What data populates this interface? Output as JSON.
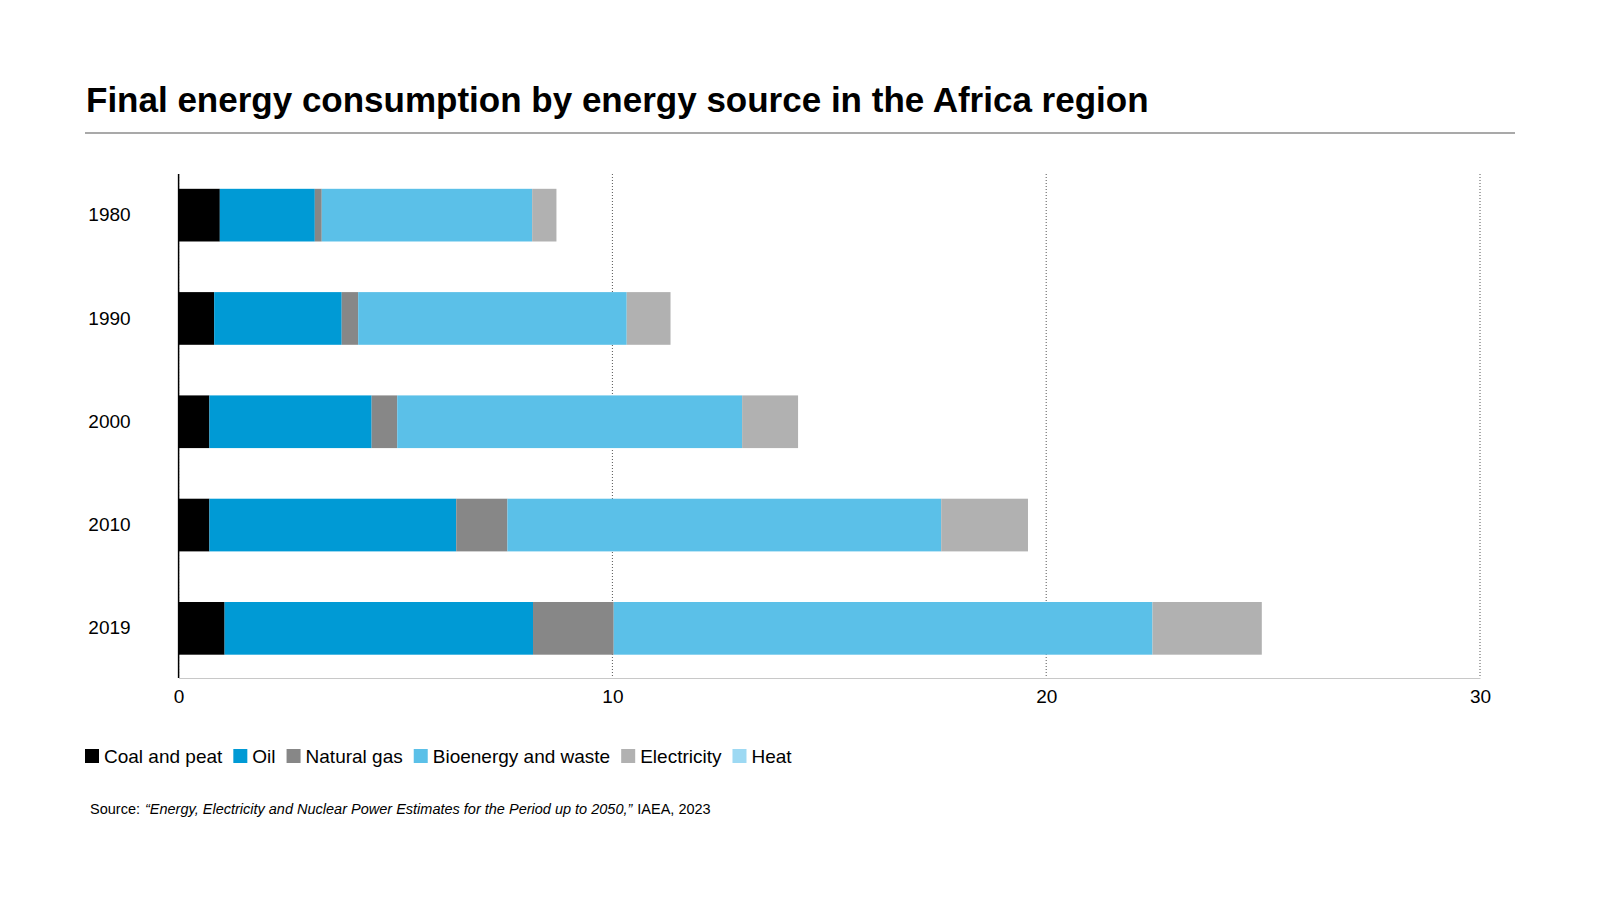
{
  "chart_data": {
    "type": "bar",
    "orientation": "horizontal",
    "stacked": true,
    "title": "Final energy consumption by energy source in the Africa region",
    "source": {
      "label": "Source:",
      "title": "“Energy, Electricity and Nuclear Power Estimates for the Period up to 2050,”",
      "publisher": "IAEA, 2023"
    },
    "categories": [
      "1980",
      "1990",
      "2000",
      "2010",
      "2019"
    ],
    "series": [
      {
        "name": "Coal and peat",
        "color": "#000000",
        "values": [
          0.95,
          0.82,
          0.71,
          0.71,
          1.06
        ]
      },
      {
        "name": "Oil",
        "color": "#009ad5",
        "values": [
          2.19,
          2.94,
          3.74,
          5.69,
          7.11
        ]
      },
      {
        "name": "Natural gas",
        "color": "#878787",
        "values": [
          0.16,
          0.38,
          0.59,
          1.18,
          1.86
        ]
      },
      {
        "name": "Bioenergy and waste",
        "color": "#5bc0e8",
        "values": [
          4.85,
          6.19,
          7.95,
          10.0,
          12.42
        ]
      },
      {
        "name": "Electricity",
        "color": "#b1b1b1",
        "values": [
          0.56,
          1.01,
          1.29,
          2.0,
          2.52
        ]
      },
      {
        "name": "Heat",
        "color": "#9dd9f3",
        "values": [
          0,
          0,
          0,
          0,
          0
        ]
      }
    ],
    "xlim": [
      0,
      30
    ],
    "xticks": [
      0,
      10,
      20,
      30
    ],
    "grid": true,
    "legend": "bottom"
  }
}
